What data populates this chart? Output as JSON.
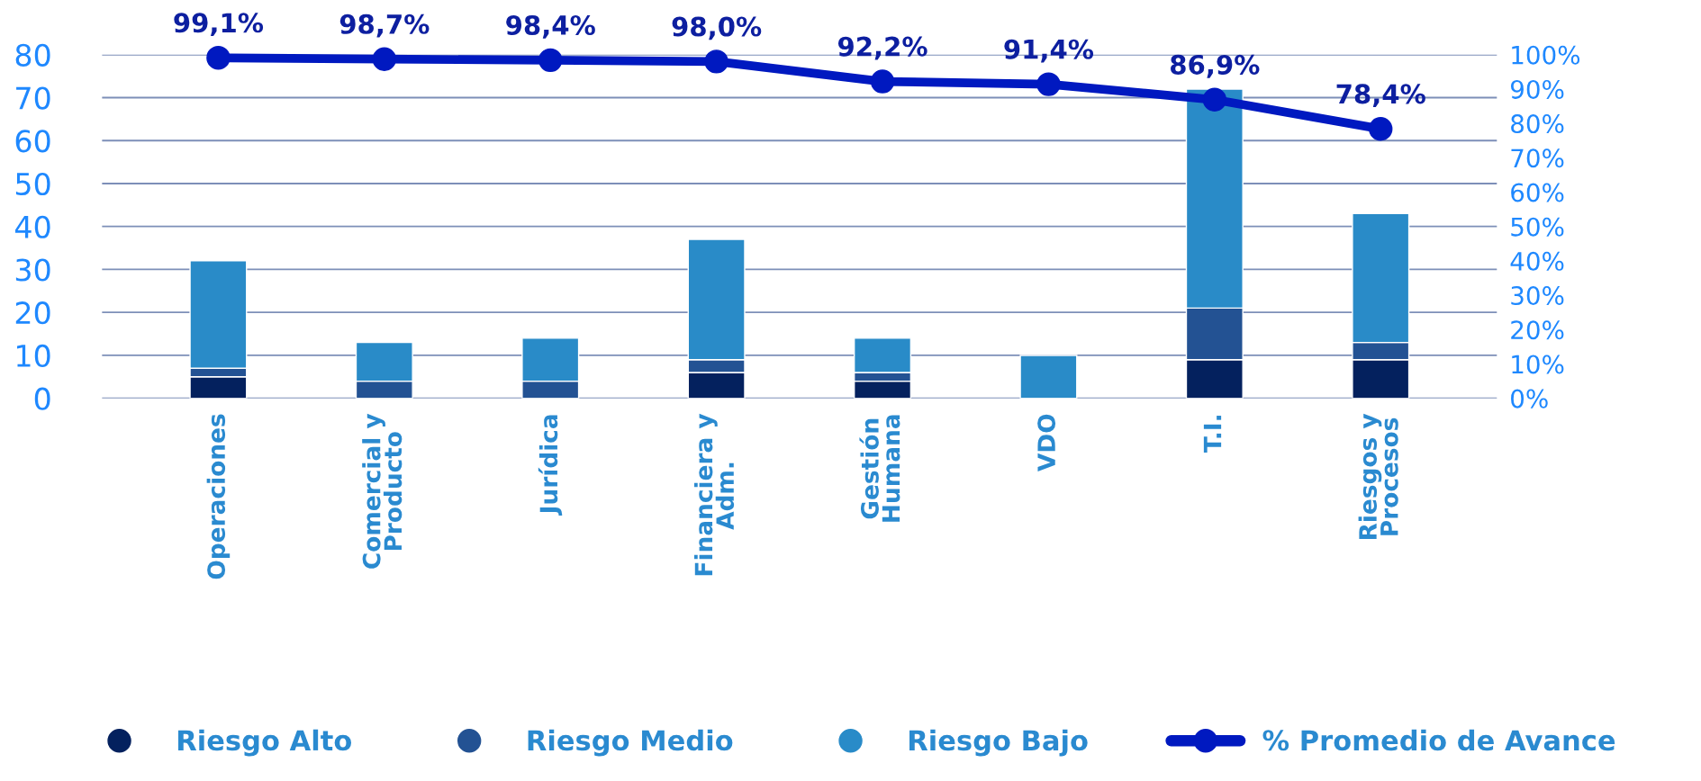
{
  "chart_data": {
    "type": "bar",
    "stacked": true,
    "categories": [
      "Operaciones",
      "Comercial y\nProducto",
      "Jurídica",
      "Financiera y\nAdm.",
      "Gestión\nHumana",
      "VDO",
      "T.I.",
      "Riesgos y\nProcesos"
    ],
    "series": [
      {
        "name": "Riesgo Alto",
        "color": "#04215e",
        "values": [
          5,
          0,
          0,
          6,
          4,
          0,
          9,
          9
        ]
      },
      {
        "name": "Riesgo Medio",
        "color": "#235293",
        "values": [
          2,
          4,
          4,
          3,
          2,
          0,
          12,
          4
        ]
      },
      {
        "name": "Riesgo Bajo",
        "color": "#298bc8",
        "values": [
          25,
          9,
          10,
          28,
          8,
          10,
          51,
          30
        ]
      },
      {
        "name": "% Promedio de Avance",
        "type": "line",
        "axis": "y2",
        "color": "#0019c0",
        "marker": "circle",
        "values": [
          99.1,
          98.7,
          98.4,
          98.0,
          92.2,
          91.4,
          86.9,
          78.4
        ],
        "value_labels": [
          "99,1%",
          "98,7%",
          "98,4%",
          "98,0%",
          "92,2%",
          "91,4%",
          "86,9%",
          "78,4%"
        ]
      }
    ],
    "ylim": [
      0,
      80
    ],
    "yticks": [
      0,
      10,
      20,
      30,
      40,
      50,
      60,
      70,
      80
    ],
    "y2lim": [
      0,
      100
    ],
    "y2ticks": [
      {
        "value": 0,
        "label": "0%"
      },
      {
        "value": 10,
        "label": "10%"
      },
      {
        "value": 20,
        "label": "20%"
      },
      {
        "value": 30,
        "label": "30%"
      },
      {
        "value": 40,
        "label": "40%"
      },
      {
        "value": 50,
        "label": "50%"
      },
      {
        "value": 60,
        "label": "60%"
      },
      {
        "value": 70,
        "label": "70%"
      },
      {
        "value": 80,
        "label": "80%"
      },
      {
        "value": 90,
        "label": "90%"
      },
      {
        "value": 100,
        "label": "100%"
      }
    ],
    "grid": "y",
    "legend": "bottom"
  }
}
